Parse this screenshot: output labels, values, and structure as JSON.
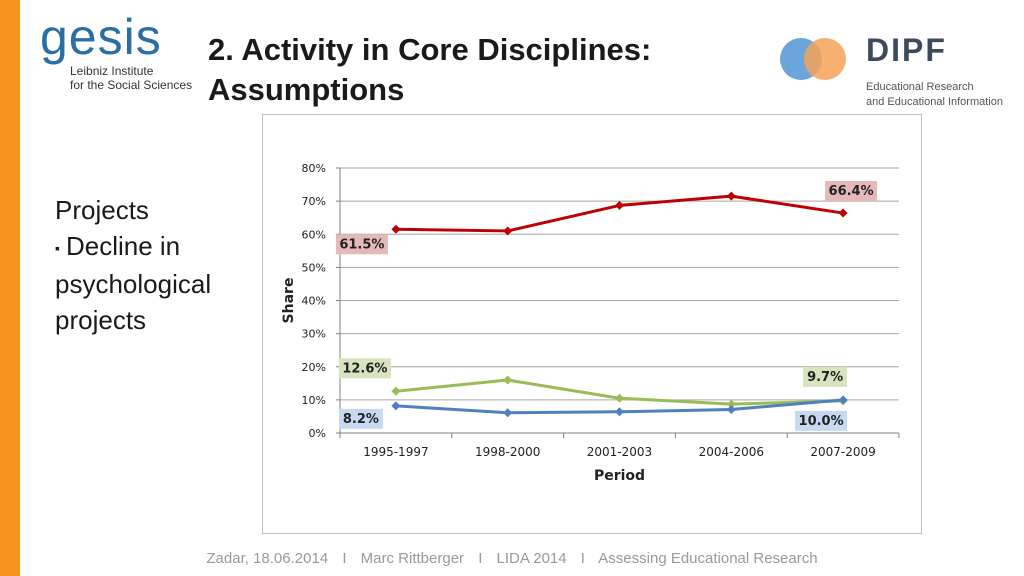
{
  "header": {
    "title_line1": "2. Activity in Core Disciplines:",
    "title_line2": "Assumptions"
  },
  "logos": {
    "gesis_word": "gesis",
    "gesis_line1": "Leibniz Institute",
    "gesis_line2": "for the Social Sciences",
    "dipf_word": "DIPF",
    "dipf_line1": "Educational Research",
    "dipf_line2": "and Educational Information"
  },
  "content": {
    "heading": "Projects",
    "bullet_line1": "Decline in",
    "bullet_line2": "psychological",
    "bullet_line3": "projects"
  },
  "footer": {
    "place_date": "Zadar, 18.06.2014",
    "author": "Marc Rittberger",
    "event": "LIDA 2014",
    "topic": "Assessing Educational Research",
    "separator": "I"
  },
  "colors": {
    "accent_bar": "#f7941d",
    "series_red": "#c00000",
    "series_green": "#9bbb59",
    "series_blue": "#4f81bd",
    "label_red_bg": "#e6b9b8",
    "label_green_bg": "#d7e4bd",
    "label_blue_bg": "#c6d9f1"
  },
  "chart_data": {
    "type": "line",
    "title": "",
    "xlabel": "Period",
    "ylabel": "Share",
    "ylim": [
      0,
      80
    ],
    "yticks": [
      "0%",
      "10%",
      "20%",
      "30%",
      "40%",
      "50%",
      "60%",
      "70%",
      "80%"
    ],
    "grid": true,
    "categories": [
      "1995-1997",
      "1998-2000",
      "2001-2003",
      "2004-2006",
      "2007-2009"
    ],
    "series": [
      {
        "name": "red",
        "color": "#c00000",
        "values": [
          61.5,
          61.0,
          68.7,
          71.5,
          66.4
        ],
        "marker": "diamond"
      },
      {
        "name": "green",
        "color": "#9bbb59",
        "values": [
          12.6,
          16.0,
          10.5,
          8.7,
          9.7
        ],
        "marker": "diamond"
      },
      {
        "name": "blue",
        "color": "#4f81bd",
        "values": [
          8.2,
          6.1,
          6.4,
          7.1,
          10.0
        ],
        "marker": "diamond"
      }
    ],
    "annotations": [
      {
        "text": "61.5%",
        "series": "red",
        "index": 0
      },
      {
        "text": "66.4%",
        "series": "red",
        "index": 4
      },
      {
        "text": "12.6%",
        "series": "green",
        "index": 0
      },
      {
        "text": "9.7%",
        "series": "green",
        "index": 4
      },
      {
        "text": "8.2%",
        "series": "blue",
        "index": 0
      },
      {
        "text": "10.0%",
        "series": "blue",
        "index": 4
      }
    ]
  }
}
